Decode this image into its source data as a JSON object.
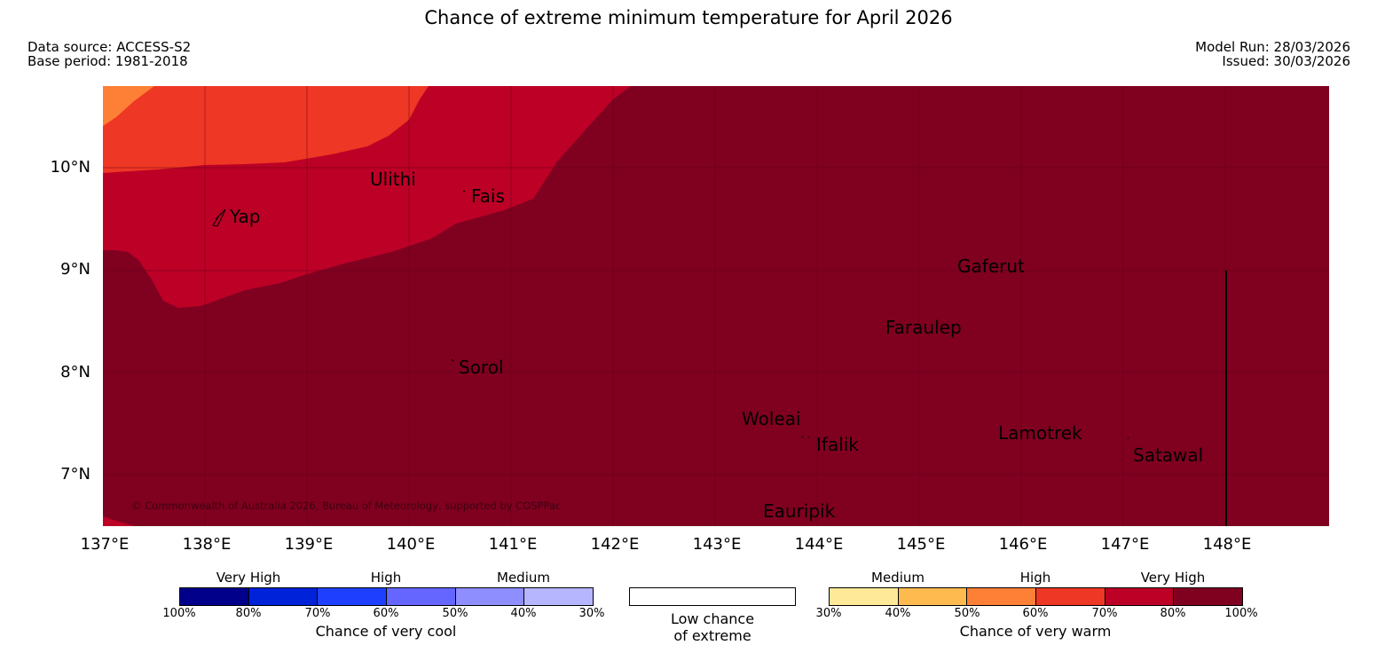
{
  "title": "Chance of extreme minimum temperature for April 2026",
  "meta": {
    "data_source": "Data source: ACCESS-S2",
    "base_period": "Base period: 1981-2018",
    "model_run": "Model Run: 28/03/2026",
    "issued": "Issued: 30/03/2026"
  },
  "map": {
    "lat_labels": [
      "10°N",
      "9°N",
      "8°N",
      "7°N"
    ],
    "lon_labels": [
      "137°E",
      "138°E",
      "139°E",
      "140°E",
      "141°E",
      "142°E",
      "143°E",
      "144°E",
      "145°E",
      "146°E",
      "147°E",
      "148°E"
    ],
    "places": {
      "ulithi": "Ulithi",
      "fais": "Fais",
      "yap": "Yap",
      "gaferut": "Gaferut",
      "faraulep": "Faraulep",
      "sorol": "Sorol",
      "woleai": "Woleai",
      "ifalik": "Ifalik",
      "lamotrek": "Lamotrek",
      "satawal": "Satawal",
      "eauripik": "Eauripik"
    },
    "copyright": "© Commonwealth of Australia 2026, Bureau of Meteorology, supported by COSPPac",
    "colors": {
      "very_high_warm": "#800020",
      "high_warm_70": "#bd0026",
      "high_warm_60": "#ee3724",
      "medium_warm_50": "#fd8036"
    }
  },
  "legend": {
    "cool": {
      "headings": [
        "Very High",
        "High",
        "Medium"
      ],
      "colors": [
        "#00008b",
        "#0022d9",
        "#1f3fff",
        "#6466ff",
        "#8e8eff",
        "#b6b6ff"
      ],
      "ticks": [
        "100%",
        "80%",
        "70%",
        "60%",
        "50%",
        "40%",
        "30%"
      ],
      "caption": "Chance of very cool"
    },
    "neutral": {
      "caption_line1": "Low chance",
      "caption_line2": "of extreme"
    },
    "warm": {
      "headings": [
        "Medium",
        "High",
        "Very High"
      ],
      "colors": [
        "#fee999",
        "#feba4f",
        "#fd8036",
        "#ee3724",
        "#bd0026",
        "#800020"
      ],
      "ticks": [
        "30%",
        "40%",
        "50%",
        "60%",
        "70%",
        "80%",
        "100%"
      ],
      "caption": "Chance of very warm"
    }
  }
}
